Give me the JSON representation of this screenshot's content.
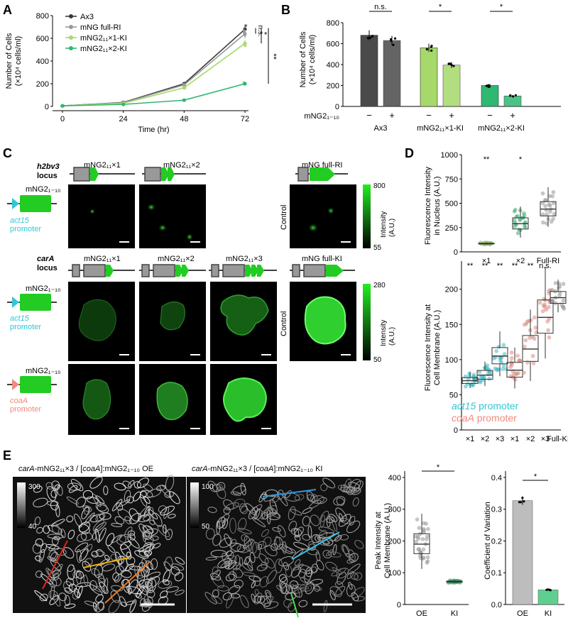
{
  "panels": {
    "A": "A",
    "B": "B",
    "C": "C",
    "D": "D",
    "E": "E"
  },
  "colors": {
    "ax3": "#3a3a3a",
    "full": "#9a9a9a",
    "x1": "#a6d96a",
    "x2": "#2eb872",
    "cyan": "#31c7d4",
    "salmon": "#ef8a7c",
    "gfp": "#22dd22"
  },
  "chart_data": [
    {
      "id": "A",
      "type": "line",
      "x": [
        0,
        24,
        48,
        72
      ],
      "xlabel": "Time (hr)",
      "ylabel": [
        "Number of Cells",
        "(×10⁴ cells/ml)"
      ],
      "ylim": [
        0,
        800
      ],
      "xlim": [
        0,
        72
      ],
      "yticks": [
        "0",
        "200",
        "400",
        "600",
        "800"
      ],
      "xticks": [
        "0",
        "24",
        "48",
        "72"
      ],
      "series": [
        {
          "name": "Ax3",
          "values": [
            5,
            35,
            200,
            680
          ]
        },
        {
          "name": "mNG full-RI",
          "values": [
            5,
            32,
            190,
            640
          ]
        },
        {
          "name": "mNG2₁₁×1-KI",
          "values": [
            5,
            28,
            165,
            555
          ]
        },
        {
          "name": "mNG2₁₁×2-KI",
          "values": [
            5,
            18,
            55,
            200
          ]
        }
      ],
      "sig": [
        "n.s.",
        "*",
        "**"
      ],
      "legend": "top-left"
    },
    {
      "id": "B",
      "type": "bar",
      "ylabel": [
        "Number of Cells",
        "(×10⁴ cells/ml)"
      ],
      "ylim": [
        0,
        800
      ],
      "yticks": [
        "0",
        "200",
        "400",
        "600",
        "800"
      ],
      "values": [
        680,
        630,
        560,
        395,
        200,
        100
      ],
      "rowlabel": "mNG2₁₋₁₀",
      "signs": [
        "−",
        "+",
        "−",
        "+",
        "−",
        "+"
      ],
      "groups": [
        "Ax3",
        "mNG2₁₁×1-KI",
        "mNG2₁₁×2-KI"
      ],
      "sig": [
        "n.s.",
        "*",
        "*"
      ]
    },
    {
      "id": "D-top",
      "type": "box",
      "ylabel": [
        "Fluorescence Intensity",
        "in Nucleus (A.U.)"
      ],
      "ylim": [
        0,
        1000
      ],
      "yticks": [
        "0",
        "250",
        "500",
        "750",
        "1000"
      ],
      "categories": [
        "×1",
        "×2",
        "Full-RI"
      ],
      "medians": [
        85,
        290,
        440
      ],
      "sig": [
        "**",
        "*",
        ""
      ]
    },
    {
      "id": "D-bottom",
      "type": "box",
      "ylabel": [
        "Fluorescence Intensity at",
        "Cell Membrane (A.U.)"
      ],
      "ylim": [
        0,
        240
      ],
      "yticks": [
        "0",
        "50",
        "100",
        "150",
        "200"
      ],
      "categories": [
        "×1",
        "×2",
        "×3",
        "×1",
        "×2",
        "×3",
        "Full-KI"
      ],
      "medians": [
        70,
        78,
        105,
        85,
        115,
        160,
        188
      ],
      "sig": [
        "**",
        "**",
        "**",
        "**",
        "**",
        "n.s.",
        ""
      ],
      "legend": [
        "act15 promoter",
        "coaA promoter"
      ]
    },
    {
      "id": "E-peak",
      "type": "box",
      "ylabel": [
        "Peak Intensity at",
        "Cell Membrane (A.U.)"
      ],
      "ylim": [
        0,
        420
      ],
      "yticks": [
        "0",
        "100",
        "200",
        "300",
        "400"
      ],
      "categories": [
        "OE",
        "KI"
      ],
      "medians": [
        190,
        72
      ],
      "sig": [
        "*"
      ]
    },
    {
      "id": "E-cv",
      "type": "bar",
      "ylabel": [
        "Coefficient of Variation"
      ],
      "ylim": [
        0,
        0.42
      ],
      "yticks": [
        "0.0",
        "0.1",
        "0.2",
        "0.3",
        "0.4"
      ],
      "categories": [
        "OE",
        "KI"
      ],
      "values": [
        0.327,
        0.046
      ],
      "sig": [
        "*"
      ]
    }
  ],
  "c": {
    "h2bv3": "h2bv3",
    "h2bv3_suffix": "locus",
    "cara": "carA",
    "cara_suffix": "locus",
    "col1": "mNG2₁₁×1",
    "col2": "mNG2₁₁×2",
    "col3": "mNG2₁₁×3",
    "full_ri": "mNG full-RI",
    "full_ki": "mNG full-KI",
    "mng110": "mNG2₁₋₁₀",
    "act15": "act15",
    "coaA": "coaA",
    "promoter": "promoter",
    "control": "Control",
    "intensity": "Intensity",
    "au": "(A.U.)",
    "cb1_max": "800",
    "cb1_min": "55",
    "cb2_max": "280",
    "cb2_min": "50"
  },
  "e": {
    "title1_a": "carA",
    "title1_b": "-mNG2₁₁×3 / [",
    "title1_c": "coaA",
    "title1_d": "]:mNG2₁₋₁₀ OE",
    "title2_a": "carA",
    "title2_b": "-mNG2₁₁×3 / [",
    "title2_c": "coaA",
    "title2_d": "]:mNG2₁₋₁₀ KI",
    "cb1_max": "300",
    "cb1_min": "40",
    "cb2_max": "100",
    "cb2_min": "50"
  }
}
